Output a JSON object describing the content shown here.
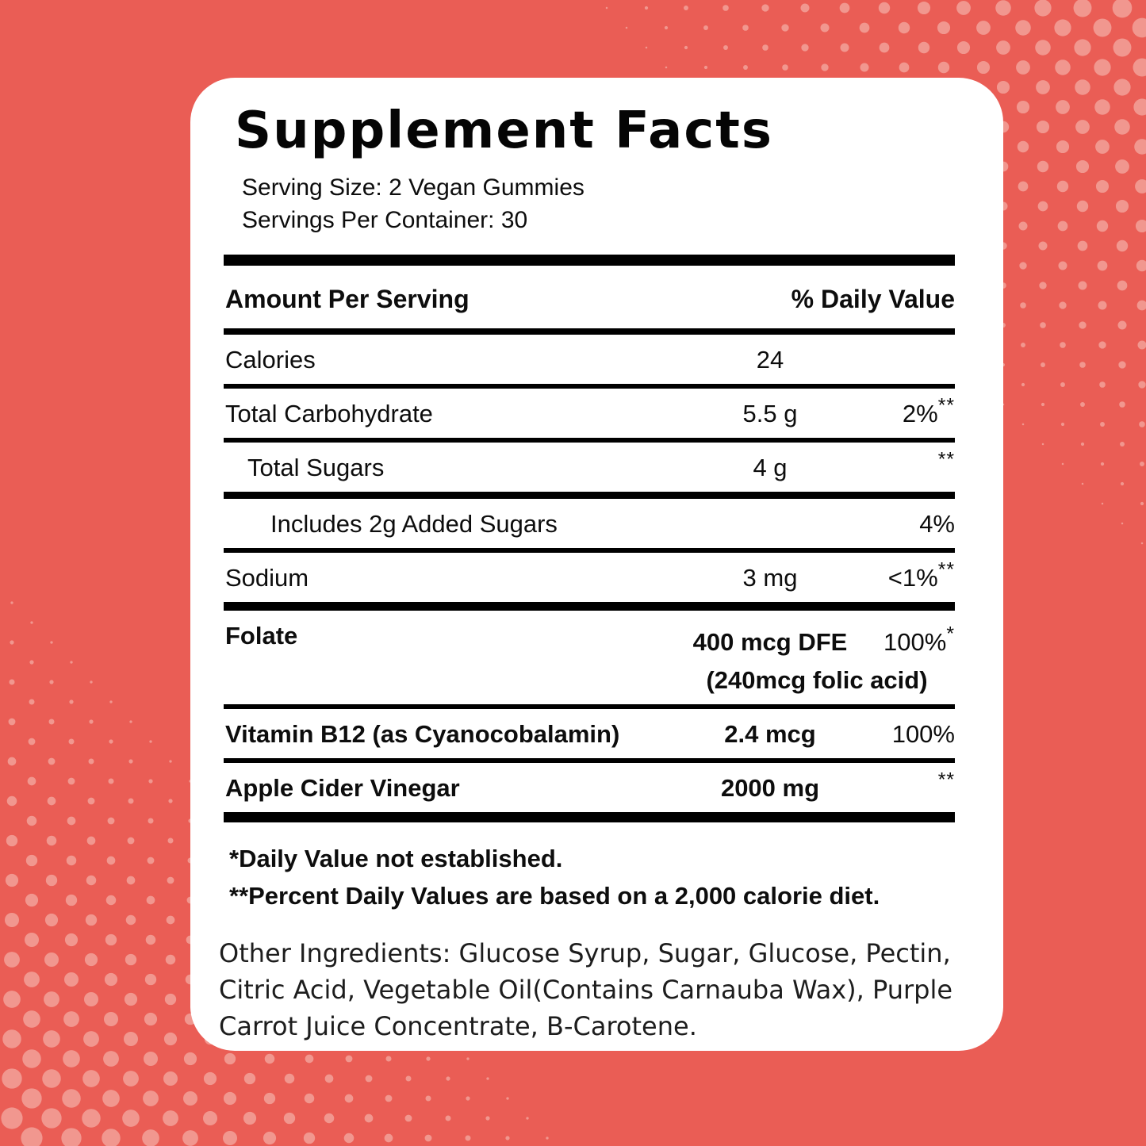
{
  "colors": {
    "background": "#EA5D55",
    "dots": "#F1978F",
    "card": "#FFFFFF",
    "rule": "#000000",
    "text": "#0D0D0D"
  },
  "header": {
    "title": "Supplement Facts",
    "serving_size": "Serving Size: 2 Vegan Gummies",
    "servings_per_container": "Servings Per Container: 30"
  },
  "table": {
    "columns": {
      "amount_header": "Amount Per Serving",
      "dv_header": "% Daily Value"
    },
    "rows": [
      {
        "name": "Calories",
        "amount": "24",
        "dv": "",
        "dv_sup": "",
        "indent": 0,
        "bold": false,
        "amount_bold": false,
        "rule": "medium"
      },
      {
        "name": "Total Carbohydrate",
        "amount": "5.5 g",
        "dv": "2%",
        "dv_sup": "**",
        "indent": 0,
        "bold": false,
        "amount_bold": false,
        "rule": "medium"
      },
      {
        "name": "Total Sugars",
        "amount": "4 g",
        "dv": "",
        "dv_sup": "**",
        "indent": 1,
        "bold": false,
        "amount_bold": false,
        "rule": "semithick"
      },
      {
        "name": "Includes 2g Added Sugars",
        "amount": "",
        "dv": "4%",
        "dv_sup": "",
        "indent": 2,
        "bold": false,
        "amount_bold": false,
        "rule": "medium"
      },
      {
        "name": "Sodium",
        "amount": "3 mg",
        "dv": "<1%",
        "dv_sup": "**",
        "indent": 0,
        "bold": false,
        "amount_bold": false,
        "rule": "thick"
      },
      {
        "name": "Folate",
        "amount": "400 mcg DFE",
        "amount_note": "(240mcg folic acid)",
        "dv": "100%",
        "dv_sup": "*",
        "indent": 0,
        "bold": true,
        "amount_bold": true,
        "rule": "medium"
      },
      {
        "name": "Vitamin B12 (as Cyanocobalamin)",
        "amount": "2.4 mcg",
        "dv": "100%",
        "dv_sup": "",
        "indent": 0,
        "bold": true,
        "amount_bold": true,
        "rule": "medium"
      },
      {
        "name": "Apple Cider Vinegar",
        "amount": "2000 mg",
        "dv": "",
        "dv_sup": "**",
        "indent": 0,
        "bold": true,
        "amount_bold": true,
        "rule": "final"
      }
    ]
  },
  "footnotes": [
    "*Daily Value not established.",
    "**Percent Daily Values are based on a 2,000 calorie diet."
  ],
  "other_ingredients": "Other Ingredients: Glucose Syrup, Sugar, Glucose, Pectin, Citric Acid, Vegetable Oil(Contains Carnauba Wax), Purple Carrot Juice Concentrate, B-Carotene."
}
